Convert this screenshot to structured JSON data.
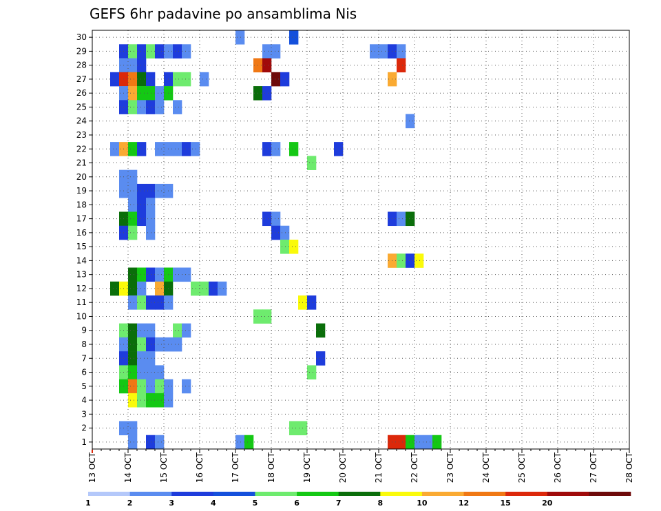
{
  "chart_data": {
    "type": "heatmap",
    "title": "GEFS 6hr padavine po ansamblima Nis",
    "y_ticks": [
      "1",
      "2",
      "3",
      "4",
      "5",
      "6",
      "7",
      "8",
      "9",
      "10",
      "11",
      "12",
      "13",
      "14",
      "15",
      "16",
      "17",
      "18",
      "19",
      "20",
      "21",
      "22",
      "23",
      "24",
      "25",
      "26",
      "27",
      "28",
      "29",
      "30"
    ],
    "x_ticks": [
      "13 OCT",
      "14 OCT",
      "15 OCT",
      "16 OCT",
      "17 OCT",
      "18 OCT",
      "19 OCT",
      "20 OCT",
      "21 OCT",
      "22 OCT",
      "23 OCT",
      "24 OCT",
      "25 OCT",
      "26 OCT",
      "27 OCT",
      "28 OCT"
    ],
    "y_range": [
      0.5,
      30.5
    ],
    "x_range_steps": [
      0,
      60
    ],
    "time_step_hours": 6,
    "grid": true,
    "legend_placement": "bottom",
    "legend": {
      "labels": [
        "1",
        "2",
        "3",
        "4",
        "5",
        "6",
        "7",
        "8",
        "10",
        "12",
        "15",
        "20"
      ],
      "colors": [
        "#b4c8fa",
        "#5a8cf0",
        "#1e3cdc",
        "#1450dc",
        "#6eeb6e",
        "#14c814",
        "#0a6e0a",
        "#fafa0a",
        "#faaa32",
        "#f07814",
        "#dc280a",
        "#a00a0a",
        "#6e0a0a"
      ]
    },
    "cells": [
      [
        30,
        16,
        1
      ],
      [
        30,
        22,
        1
      ],
      [
        30,
        22,
        3
      ],
      [
        29,
        3,
        2
      ],
      [
        29,
        4,
        4
      ],
      [
        29,
        5,
        2
      ],
      [
        29,
        6,
        4
      ],
      [
        29,
        7,
        2
      ],
      [
        29,
        8,
        1
      ],
      [
        29,
        9,
        2
      ],
      [
        29,
        10,
        1
      ],
      [
        29,
        19,
        1
      ],
      [
        29,
        20,
        1
      ],
      [
        29,
        31,
        1
      ],
      [
        29,
        32,
        1
      ],
      [
        29,
        33,
        2
      ],
      [
        29,
        34,
        1
      ],
      [
        28,
        3,
        1
      ],
      [
        28,
        4,
        1
      ],
      [
        28,
        5,
        2
      ],
      [
        28,
        18,
        9
      ],
      [
        28,
        19,
        11
      ],
      [
        28,
        34,
        10
      ],
      [
        27,
        2,
        2
      ],
      [
        27,
        3,
        10
      ],
      [
        27,
        4,
        9
      ],
      [
        27,
        5,
        6
      ],
      [
        27,
        6,
        2
      ],
      [
        27,
        8,
        2
      ],
      [
        27,
        9,
        4
      ],
      [
        27,
        10,
        4
      ],
      [
        27,
        12,
        1
      ],
      [
        27,
        20,
        12
      ],
      [
        27,
        21,
        2
      ],
      [
        27,
        33,
        8
      ],
      [
        26,
        3,
        1
      ],
      [
        26,
        4,
        8
      ],
      [
        26,
        5,
        5
      ],
      [
        26,
        6,
        5
      ],
      [
        26,
        7,
        1
      ],
      [
        26,
        8,
        5
      ],
      [
        26,
        18,
        6
      ],
      [
        26,
        19,
        2
      ],
      [
        25,
        3,
        2
      ],
      [
        25,
        4,
        4
      ],
      [
        25,
        5,
        1
      ],
      [
        25,
        6,
        2
      ],
      [
        25,
        7,
        1
      ],
      [
        25,
        9,
        1
      ],
      [
        24,
        35,
        1
      ],
      [
        22,
        2,
        1
      ],
      [
        22,
        3,
        8
      ],
      [
        22,
        4,
        5
      ],
      [
        22,
        5,
        2
      ],
      [
        22,
        7,
        1
      ],
      [
        22,
        8,
        1
      ],
      [
        22,
        9,
        1
      ],
      [
        22,
        10,
        2
      ],
      [
        22,
        11,
        1
      ],
      [
        22,
        19,
        2
      ],
      [
        22,
        20,
        1
      ],
      [
        22,
        22,
        5
      ],
      [
        22,
        27,
        2
      ],
      [
        21,
        24,
        4
      ],
      [
        20,
        3,
        1
      ],
      [
        20,
        4,
        1
      ],
      [
        19,
        3,
        1
      ],
      [
        19,
        4,
        1
      ],
      [
        19,
        5,
        2
      ],
      [
        19,
        6,
        2
      ],
      [
        19,
        7,
        1
      ],
      [
        19,
        8,
        1
      ],
      [
        18,
        4,
        1
      ],
      [
        18,
        5,
        2
      ],
      [
        18,
        6,
        1
      ],
      [
        17,
        3,
        6
      ],
      [
        17,
        4,
        5
      ],
      [
        17,
        5,
        2
      ],
      [
        17,
        6,
        1
      ],
      [
        17,
        19,
        2
      ],
      [
        17,
        20,
        1
      ],
      [
        17,
        33,
        2
      ],
      [
        17,
        34,
        1
      ],
      [
        17,
        35,
        6
      ],
      [
        16,
        3,
        2
      ],
      [
        16,
        4,
        4
      ],
      [
        16,
        6,
        1
      ],
      [
        16,
        20,
        2
      ],
      [
        16,
        21,
        1
      ],
      [
        15,
        21,
        4
      ],
      [
        15,
        22,
        7
      ],
      [
        14,
        33,
        8
      ],
      [
        14,
        34,
        4
      ],
      [
        14,
        35,
        2
      ],
      [
        14,
        36,
        7
      ],
      [
        13,
        4,
        6
      ],
      [
        13,
        5,
        5
      ],
      [
        13,
        6,
        2
      ],
      [
        13,
        7,
        1
      ],
      [
        13,
        8,
        5
      ],
      [
        13,
        9,
        1
      ],
      [
        13,
        10,
        1
      ],
      [
        12,
        2,
        6
      ],
      [
        12,
        3,
        7
      ],
      [
        12,
        4,
        6
      ],
      [
        12,
        5,
        1
      ],
      [
        12,
        7,
        8
      ],
      [
        12,
        8,
        6
      ],
      [
        12,
        11,
        4
      ],
      [
        12,
        12,
        4
      ],
      [
        12,
        13,
        2
      ],
      [
        12,
        14,
        1
      ],
      [
        11,
        4,
        1
      ],
      [
        11,
        5,
        4
      ],
      [
        11,
        6,
        2
      ],
      [
        11,
        7,
        2
      ],
      [
        11,
        8,
        1
      ],
      [
        11,
        23,
        7
      ],
      [
        11,
        24,
        2
      ],
      [
        10,
        18,
        4
      ],
      [
        10,
        19,
        4
      ],
      [
        9,
        3,
        4
      ],
      [
        9,
        4,
        6
      ],
      [
        9,
        5,
        1
      ],
      [
        9,
        6,
        1
      ],
      [
        9,
        9,
        4
      ],
      [
        9,
        10,
        1
      ],
      [
        9,
        25,
        6
      ],
      [
        8,
        3,
        1
      ],
      [
        8,
        4,
        6
      ],
      [
        8,
        5,
        4
      ],
      [
        8,
        6,
        2
      ],
      [
        8,
        7,
        1
      ],
      [
        8,
        8,
        1
      ],
      [
        8,
        9,
        1
      ],
      [
        7,
        3,
        2
      ],
      [
        7,
        4,
        6
      ],
      [
        7,
        5,
        1
      ],
      [
        7,
        6,
        1
      ],
      [
        7,
        25,
        2
      ],
      [
        6,
        3,
        4
      ],
      [
        6,
        4,
        5
      ],
      [
        6,
        5,
        1
      ],
      [
        6,
        6,
        1
      ],
      [
        6,
        7,
        1
      ],
      [
        6,
        24,
        4
      ],
      [
        5,
        3,
        5
      ],
      [
        5,
        4,
        9
      ],
      [
        5,
        5,
        4
      ],
      [
        5,
        6,
        1
      ],
      [
        5,
        7,
        4
      ],
      [
        5,
        8,
        1
      ],
      [
        5,
        10,
        1
      ],
      [
        4,
        4,
        7
      ],
      [
        4,
        5,
        4
      ],
      [
        4,
        6,
        5
      ],
      [
        4,
        7,
        5
      ],
      [
        4,
        8,
        1
      ],
      [
        2,
        3,
        1
      ],
      [
        2,
        4,
        1
      ],
      [
        2,
        22,
        4
      ],
      [
        2,
        23,
        4
      ],
      [
        1,
        4,
        1
      ],
      [
        1,
        6,
        2
      ],
      [
        1,
        7,
        1
      ],
      [
        1,
        16,
        1
      ],
      [
        1,
        17,
        5
      ],
      [
        1,
        33,
        10
      ],
      [
        1,
        34,
        10
      ],
      [
        1,
        35,
        5
      ],
      [
        1,
        36,
        1
      ],
      [
        1,
        37,
        1
      ],
      [
        1,
        38,
        5
      ]
    ]
  }
}
